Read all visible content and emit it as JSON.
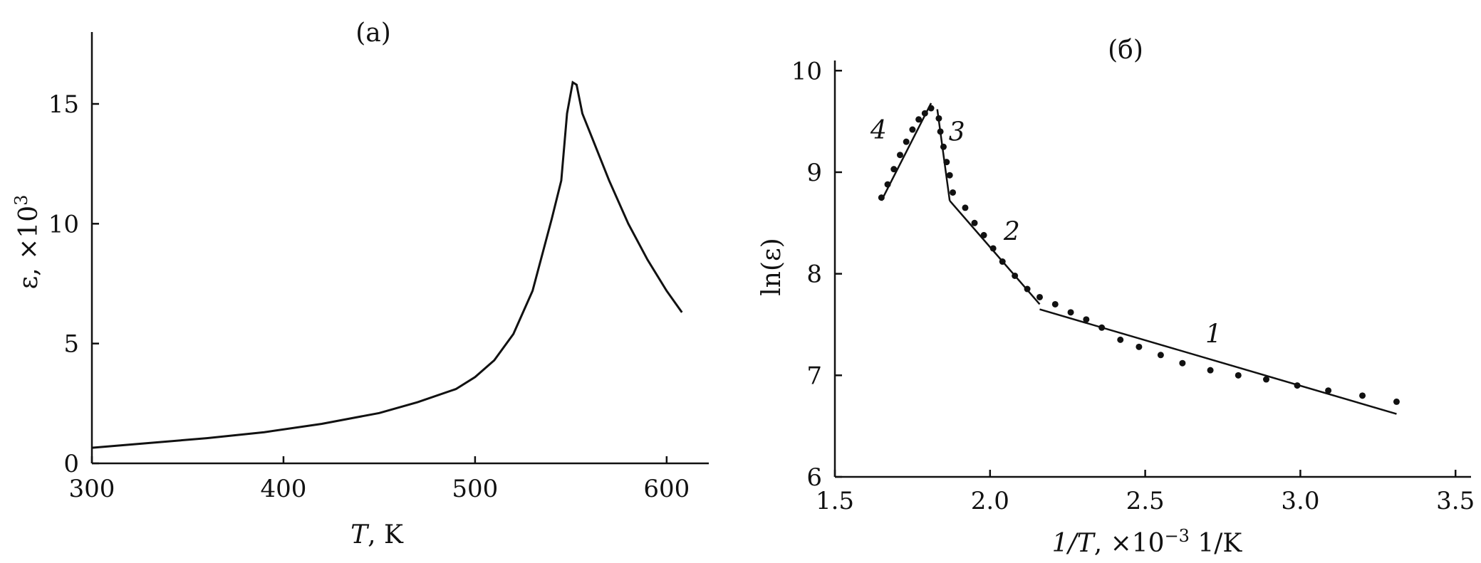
{
  "chart_data": [
    {
      "type": "line",
      "panel_label": "(a)",
      "xlabel_var": "T",
      "xlabel_unit": ", K",
      "ylabel": "ε, ×10",
      "ylabel_sup": "3",
      "xlim": [
        300,
        622
      ],
      "ylim": [
        0,
        18
      ],
      "xticks": [
        300,
        400,
        500,
        600
      ],
      "yticks": [
        0,
        5,
        10,
        15
      ],
      "series": [
        {
          "x": [
            300,
            330,
            360,
            390,
            420,
            450,
            470,
            490,
            500,
            510,
            520,
            530,
            540,
            545,
            548,
            551,
            553,
            556,
            560,
            570,
            580,
            590,
            600,
            608
          ],
          "y": [
            0.65,
            0.85,
            1.05,
            1.3,
            1.65,
            2.1,
            2.55,
            3.1,
            3.6,
            4.3,
            5.4,
            7.2,
            10.2,
            11.8,
            14.6,
            15.9,
            15.8,
            14.6,
            13.8,
            11.8,
            10.0,
            8.5,
            7.2,
            6.3
          ]
        }
      ]
    },
    {
      "type": "scatter",
      "panel_label": "(б)",
      "xlabel_var": "1/T",
      "xlabel_unit": ", ×10",
      "xlabel_sup": "−3",
      "xlabel_tail": " 1/K",
      "ylabel": "ln(ε)",
      "xlim": [
        1.5,
        3.55
      ],
      "ylim": [
        6,
        10.1
      ],
      "xticks": [
        "1.5",
        "2.0",
        "2.5",
        "3.0",
        "3.5"
      ],
      "yticks": [
        "6",
        "7",
        "8",
        "9",
        "10"
      ],
      "points": {
        "x": [
          1.65,
          1.67,
          1.69,
          1.71,
          1.73,
          1.75,
          1.77,
          1.79,
          1.81,
          1.835,
          1.84,
          1.85,
          1.86,
          1.87,
          1.88,
          1.92,
          1.95,
          1.98,
          2.01,
          2.04,
          2.08,
          2.12,
          2.16,
          2.21,
          2.26,
          2.31,
          2.36,
          2.42,
          2.48,
          2.55,
          2.62,
          2.71,
          2.8,
          2.89,
          2.99,
          3.09,
          3.2,
          3.31
        ],
        "y": [
          8.75,
          8.88,
          9.03,
          9.17,
          9.3,
          9.42,
          9.52,
          9.58,
          9.63,
          9.53,
          9.4,
          9.25,
          9.1,
          8.97,
          8.8,
          8.65,
          8.5,
          8.38,
          8.25,
          8.12,
          7.98,
          7.85,
          7.77,
          7.7,
          7.62,
          7.55,
          7.47,
          7.35,
          7.28,
          7.2,
          7.12,
          7.05,
          7.0,
          6.96,
          6.9,
          6.85,
          6.8,
          6.74
        ]
      },
      "fits": [
        {
          "label": "1",
          "x": [
            2.16,
            3.31
          ],
          "y": [
            7.65,
            6.62
          ]
        },
        {
          "label": "2",
          "x": [
            1.87,
            2.16
          ],
          "y": [
            8.72,
            7.7
          ]
        },
        {
          "label": "3",
          "x": [
            1.83,
            1.87
          ],
          "y": [
            9.62,
            8.72
          ]
        },
        {
          "label": "4",
          "x": [
            1.65,
            1.81
          ],
          "y": [
            8.72,
            9.68
          ]
        }
      ]
    }
  ]
}
